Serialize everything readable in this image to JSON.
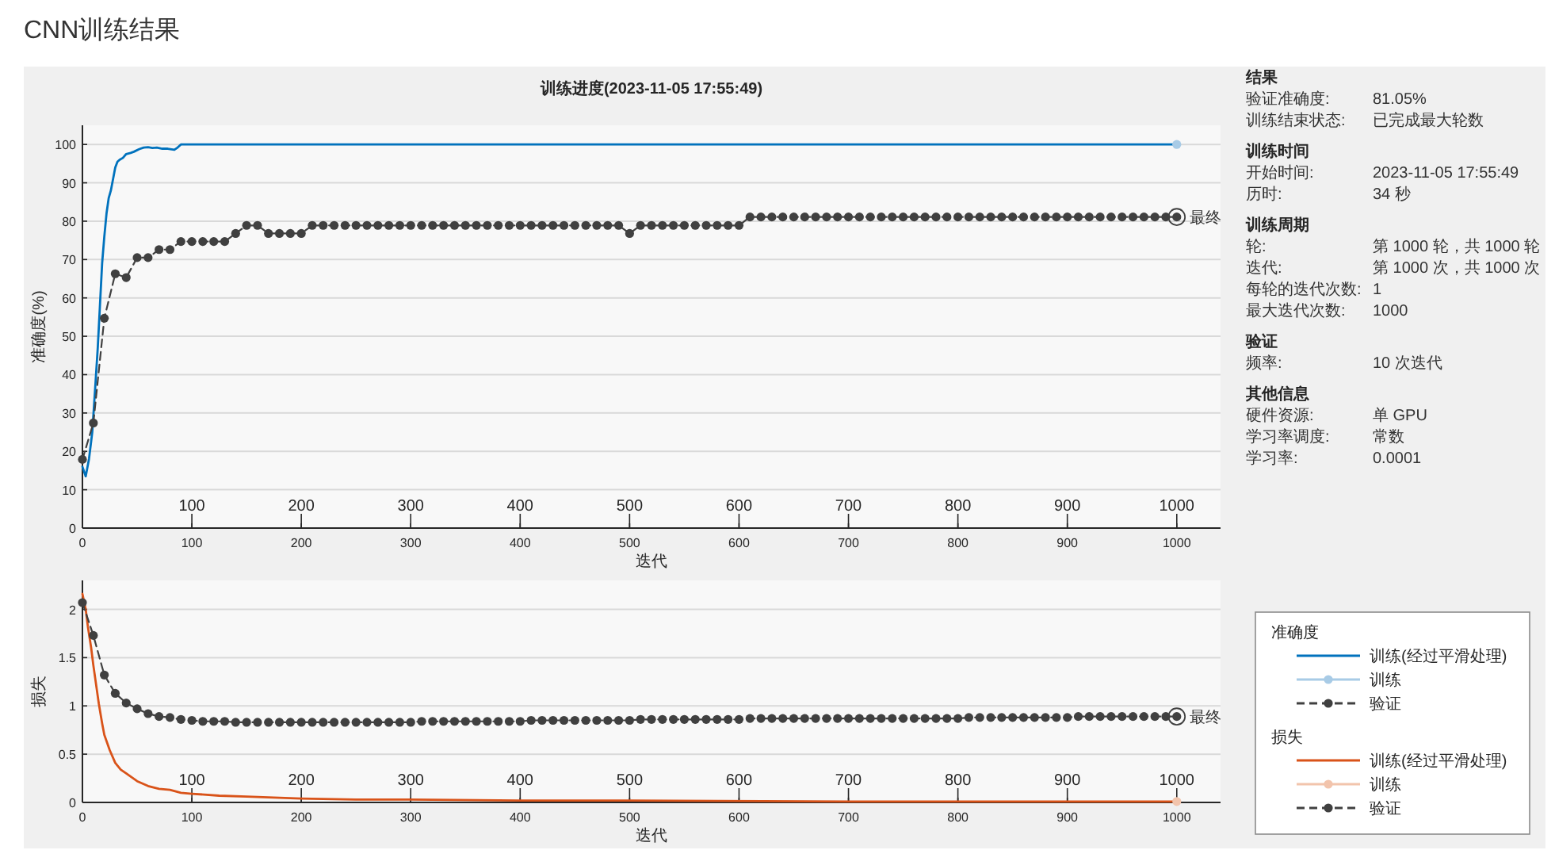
{
  "chart_data": [
    {
      "type": "line",
      "title": "CNN训练结果",
      "subtitle": "训练进度(2023-11-05 17:55:49)",
      "xlabel": "迭代",
      "ylabel": "准确度(%)",
      "legend_title": "准确度",
      "legend": "right",
      "grid": "y",
      "xlim": [
        0,
        1040
      ],
      "xticks": [
        0,
        100,
        200,
        300,
        400,
        500,
        600,
        700,
        800,
        900,
        1000
      ],
      "x2lim": [
        0,
        1040
      ],
      "x2ticks": [
        100,
        200,
        300,
        400,
        500,
        600,
        700,
        800,
        900,
        1000
      ],
      "ylim": [
        0,
        105
      ],
      "yticks": [
        0,
        10,
        20,
        30,
        40,
        50,
        60,
        70,
        80,
        90,
        100
      ],
      "series": [
        {
          "name": "训练(经过平滑处理)",
          "color": "#0072bd",
          "marker": "none",
          "line_style": "solid",
          "x": [
            0,
            3,
            6,
            9,
            12,
            14,
            16,
            18,
            20,
            22,
            24,
            26,
            28,
            30,
            32,
            34,
            37,
            40,
            44,
            47,
            52,
            56,
            60,
            64,
            68,
            73,
            78,
            84,
            87,
            90,
            1000
          ],
          "values": [
            16,
            13.5,
            18,
            25,
            38,
            47,
            58,
            69,
            76,
            82,
            86,
            88,
            91,
            94,
            95.5,
            96,
            96.5,
            97.5,
            97.8,
            98.1,
            98.8,
            99.2,
            99.3,
            99.1,
            99.2,
            98.9,
            98.9,
            98.6,
            99.2,
            100,
            100
          ]
        },
        {
          "name": "训练",
          "color": "#a8cbe6",
          "marker": "circle",
          "line_style": "solid",
          "x": [
            1000
          ],
          "values": [
            100
          ]
        },
        {
          "name": "验证",
          "color": "#404040",
          "marker": "circle",
          "line_style": "dashed",
          "x": [
            0,
            10,
            20,
            30,
            40,
            50,
            60,
            70,
            80,
            90,
            100,
            110,
            120,
            130,
            140,
            150,
            160,
            170,
            180,
            190,
            200,
            210,
            220,
            230,
            240,
            250,
            260,
            270,
            280,
            290,
            300,
            310,
            320,
            330,
            340,
            350,
            360,
            370,
            380,
            390,
            400,
            410,
            420,
            430,
            440,
            450,
            460,
            470,
            480,
            490,
            500,
            510,
            520,
            530,
            540,
            550,
            560,
            570,
            580,
            590,
            600,
            610,
            620,
            630,
            640,
            650,
            660,
            670,
            680,
            690,
            700,
            710,
            720,
            730,
            740,
            750,
            760,
            770,
            780,
            790,
            800,
            810,
            820,
            830,
            840,
            850,
            860,
            870,
            880,
            890,
            900,
            910,
            920,
            930,
            940,
            950,
            960,
            970,
            980,
            990,
            1000
          ],
          "values": [
            17.9,
            27.4,
            54.7,
            66.3,
            65.3,
            70.5,
            70.5,
            72.6,
            72.6,
            74.7,
            74.7,
            74.7,
            74.7,
            74.7,
            76.8,
            78.9,
            78.9,
            76.8,
            76.8,
            76.8,
            76.8,
            78.9,
            78.9,
            78.9,
            78.9,
            78.9,
            78.9,
            78.9,
            78.9,
            78.9,
            78.9,
            78.9,
            78.9,
            78.9,
            78.9,
            78.9,
            78.9,
            78.9,
            78.9,
            78.9,
            78.9,
            78.9,
            78.9,
            78.9,
            78.9,
            78.9,
            78.9,
            78.9,
            78.9,
            78.9,
            76.8,
            78.9,
            78.9,
            78.9,
            78.9,
            78.9,
            78.9,
            78.9,
            78.9,
            78.9,
            78.9,
            81.1,
            81.1,
            81.1,
            81.1,
            81.1,
            81.1,
            81.1,
            81.1,
            81.1,
            81.1,
            81.1,
            81.1,
            81.1,
            81.1,
            81.1,
            81.1,
            81.1,
            81.1,
            81.1,
            81.1,
            81.1,
            81.1,
            81.1,
            81.1,
            81.1,
            81.1,
            81.1,
            81.1,
            81.1,
            81.1,
            81.1,
            81.1,
            81.1,
            81.1,
            81.1,
            81.1,
            81.1,
            81.1,
            81.1,
            81.1
          ]
        }
      ],
      "annotations": [
        {
          "text": "最终",
          "x": 1000,
          "y": 81.1
        }
      ]
    },
    {
      "type": "other",
      "title": "结果",
      "annotations": [
        "验证准确度:",
        "81.05%",
        "训练结束状态:",
        "已完成最大轮数"
      ]
    },
    {
      "type": "other",
      "title": "训练时间",
      "annotations": [
        "开始时间:",
        "2023-11-05 17:55:49",
        "历时:",
        "34 秒"
      ]
    },
    {
      "type": "other",
      "title": "训练周期",
      "annotations": [
        "轮:",
        "第 1000 轮，共 1000 轮",
        "迭代:",
        "第 1000 次，共 1000 次",
        "每轮的迭代次数:",
        "1",
        "最大迭代次数:",
        "1000"
      ]
    },
    {
      "type": "other",
      "title": "验证",
      "annotations": [
        "频率:",
        "10 次迭代"
      ]
    },
    {
      "type": "other",
      "title": "其他信息",
      "annotations": [
        "硬件资源:",
        "单 GPU",
        "学习率调度:",
        "常数",
        "学习率:",
        "0.0001"
      ]
    },
    {
      "type": "line",
      "xlabel": "迭代",
      "ylabel": "损失",
      "legend_title": "损失",
      "legend": "right",
      "grid": "y",
      "xlim": [
        0,
        1040
      ],
      "xticks": [
        0,
        100,
        200,
        300,
        400,
        500,
        600,
        700,
        800,
        900,
        1000
      ],
      "x2lim": [
        0,
        1040
      ],
      "x2ticks": [
        100,
        200,
        300,
        400,
        500,
        600,
        700,
        800,
        900,
        1000
      ],
      "ylim": [
        0,
        2.3
      ],
      "yticks": [
        0,
        0.5,
        1,
        1.5,
        2
      ],
      "series": [
        {
          "name": "训练(经过平滑处理)",
          "color": "#d95319",
          "marker": "none",
          "line_style": "solid",
          "x": [
            0,
            3,
            5,
            8,
            10,
            13,
            15,
            18,
            20,
            25,
            30,
            35,
            40,
            50,
            60,
            70,
            80,
            90,
            100,
            125,
            150,
            200,
            250,
            300,
            400,
            500,
            700,
            1000
          ],
          "values": [
            2.16,
            2.0,
            1.82,
            1.6,
            1.42,
            1.18,
            1.02,
            0.82,
            0.7,
            0.54,
            0.41,
            0.34,
            0.3,
            0.22,
            0.17,
            0.14,
            0.13,
            0.1,
            0.09,
            0.07,
            0.06,
            0.04,
            0.03,
            0.03,
            0.02,
            0.02,
            0.01,
            0.01
          ]
        },
        {
          "name": "训练",
          "color": "#f2c4ac",
          "marker": "circle",
          "line_style": "solid",
          "x": [
            1000
          ],
          "values": [
            0.01
          ]
        },
        {
          "name": "验证",
          "color": "#404040",
          "marker": "circle",
          "line_style": "dashed",
          "x": [
            0,
            10,
            20,
            30,
            40,
            50,
            60,
            70,
            80,
            90,
            100,
            110,
            120,
            130,
            140,
            150,
            160,
            170,
            180,
            190,
            200,
            210,
            220,
            230,
            240,
            250,
            260,
            270,
            280,
            290,
            300,
            310,
            320,
            330,
            340,
            350,
            360,
            370,
            380,
            390,
            400,
            410,
            420,
            430,
            440,
            450,
            460,
            470,
            480,
            490,
            500,
            510,
            520,
            530,
            540,
            550,
            560,
            570,
            580,
            590,
            600,
            610,
            620,
            630,
            640,
            650,
            660,
            670,
            680,
            690,
            700,
            710,
            720,
            730,
            740,
            750,
            760,
            770,
            780,
            790,
            800,
            810,
            820,
            830,
            840,
            850,
            860,
            870,
            880,
            890,
            900,
            910,
            920,
            930,
            940,
            950,
            960,
            970,
            980,
            990,
            1000
          ],
          "values": [
            2.07,
            1.73,
            1.32,
            1.13,
            1.03,
            0.97,
            0.92,
            0.89,
            0.88,
            0.86,
            0.85,
            0.84,
            0.84,
            0.84,
            0.83,
            0.83,
            0.83,
            0.83,
            0.83,
            0.83,
            0.83,
            0.83,
            0.83,
            0.83,
            0.83,
            0.83,
            0.83,
            0.83,
            0.83,
            0.83,
            0.83,
            0.84,
            0.84,
            0.84,
            0.84,
            0.84,
            0.84,
            0.84,
            0.84,
            0.84,
            0.84,
            0.85,
            0.85,
            0.85,
            0.85,
            0.85,
            0.85,
            0.85,
            0.85,
            0.85,
            0.85,
            0.86,
            0.86,
            0.86,
            0.86,
            0.86,
            0.86,
            0.86,
            0.86,
            0.86,
            0.86,
            0.87,
            0.87,
            0.87,
            0.87,
            0.87,
            0.87,
            0.87,
            0.87,
            0.87,
            0.87,
            0.87,
            0.87,
            0.87,
            0.87,
            0.87,
            0.87,
            0.87,
            0.87,
            0.87,
            0.87,
            0.88,
            0.88,
            0.88,
            0.88,
            0.88,
            0.88,
            0.88,
            0.88,
            0.88,
            0.88,
            0.89,
            0.89,
            0.89,
            0.89,
            0.89,
            0.89,
            0.89,
            0.89,
            0.89,
            0.89
          ]
        }
      ],
      "annotations": [
        {
          "text": "最终",
          "x": 1000,
          "y": 0.89
        }
      ]
    }
  ]
}
